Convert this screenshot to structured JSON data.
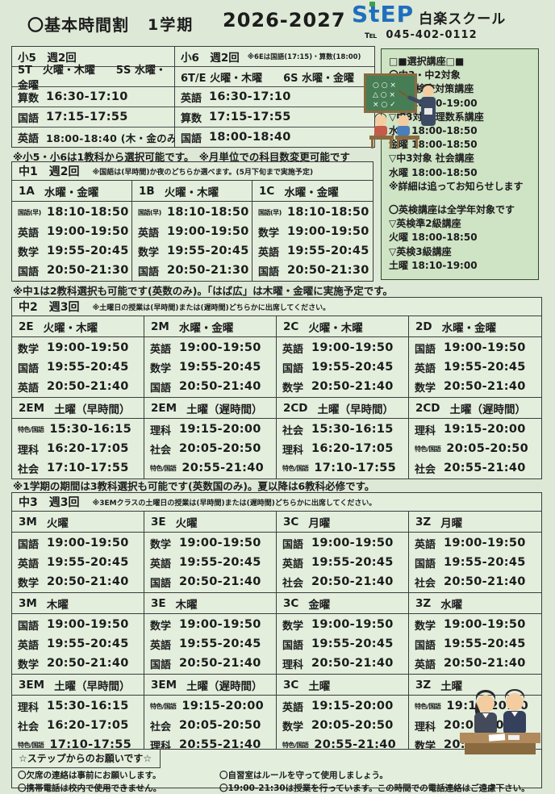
{
  "header": {
    "title": "〇基本時間割",
    "term": "1学期",
    "year": "2026-2027",
    "logo_step": "StEP",
    "school_name": "白楽スクール",
    "tel_label": "℡",
    "tel_number": "045-402-0112"
  },
  "colors": {
    "page_bg": "#dde8d6",
    "table_bg": "#e3eedd",
    "elective_bg": "#cfe3c5",
    "border": "#3c3c3c",
    "logo_blue": "#1f6fbe",
    "logo_green": "#3d9e4b"
  },
  "sho5": {
    "title": "小5　週2回",
    "class_line": "5T　火曜・木曜　　5S 水曜・金曜",
    "rows": [
      {
        "subject": "算数",
        "time": "16:30-17:10"
      },
      {
        "subject": "国語",
        "time": "17:15-17:55"
      },
      {
        "subject": "英語",
        "time": "18:00-18:40 (木・金のみ)"
      }
    ]
  },
  "sho6": {
    "title": "小6　週2回",
    "title_note": "※6Eは国語(17:15)・算数(18:00)",
    "class_line": "6T/E 火曜・木曜　　6S 水曜・金曜",
    "rows": [
      {
        "subject": "英語",
        "time": "16:30-17:10"
      },
      {
        "subject": "算数",
        "time": "17:15-17:55"
      },
      {
        "subject": "国語",
        "time": "18:00-18:40"
      }
    ]
  },
  "sho_note": "※小5・小6は1教科から選択可能です。　※月単位での科目数変更可能です",
  "electives": {
    "lines": [
      "□■選択講座□■",
      "〇中3・中2対象",
      "▽特色検査対策講座",
      "土曜  18:10-19:00",
      "▽中3対象  理数系講座",
      "水曜  18:00-18:50",
      "金曜  18:00-18:50",
      "▽中3対象  社会講座",
      "水曜  18:00-18:50",
      "※詳細は追ってお知らせします",
      "",
      "〇英検講座は全学年対象です",
      "▽英検準2級講座",
      "火曜  18:00-18:50",
      "▽英検3級講座",
      "土曜  18:10-19:00"
    ]
  },
  "chu1": {
    "title": "中1　週2回",
    "title_note": "※国語は(早時間)か夜のどちらか選べます。(5月下旬まで実施予定)",
    "footnote": "※中1は2教科選択も可能です(英数のみ)。「はば広」は木曜・金曜に実施予定です。",
    "blocks": [
      {
        "columns": [
          {
            "name": "1A",
            "days": "水曜・金曜",
            "rows": [
              {
                "subject": "国語(早)",
                "time": "18:10-18:50"
              },
              {
                "subject": "英語",
                "time": "19:00-19:50"
              },
              {
                "subject": "数学",
                "time": "19:55-20:45"
              },
              {
                "subject": "国語",
                "time": "20:50-21:30"
              }
            ]
          },
          {
            "name": "1B",
            "days": "火曜・木曜",
            "rows": [
              {
                "subject": "国語(早)",
                "time": "18:10-18:50"
              },
              {
                "subject": "英語",
                "time": "19:00-19:50"
              },
              {
                "subject": "数学",
                "time": "19:55-20:45"
              },
              {
                "subject": "国語",
                "time": "20:50-21:30"
              }
            ]
          },
          {
            "name": "1C",
            "days": "水曜・金曜",
            "rows": [
              {
                "subject": "国語(早)",
                "time": "18:10-18:50"
              },
              {
                "subject": "数学",
                "time": "19:00-19:50"
              },
              {
                "subject": "英語",
                "time": "19:55-20:45"
              },
              {
                "subject": "国語",
                "time": "20:50-21:30"
              }
            ]
          }
        ]
      }
    ]
  },
  "chu2": {
    "title": "中2　週3回",
    "title_note": "※土曜日の授業は(早時間)または(遅時間)どちらかに出席してください。",
    "footnote": "※1学期の期間は3教科選択も可能です(英数国のみ)。夏以降は6教科必修です。",
    "blocks": [
      {
        "columns": [
          {
            "name": "2E",
            "days": "火曜・木曜",
            "rows": [
              {
                "subject": "数学",
                "time": "19:00-19:50"
              },
              {
                "subject": "国語",
                "time": "19:55-20:45"
              },
              {
                "subject": "英語",
                "time": "20:50-21:40"
              }
            ]
          },
          {
            "name": "2M",
            "days": "水曜・金曜",
            "rows": [
              {
                "subject": "英語",
                "time": "19:00-19:50"
              },
              {
                "subject": "数学",
                "time": "19:55-20:45"
              },
              {
                "subject": "国語",
                "time": "20:50-21:40"
              }
            ]
          },
          {
            "name": "2C",
            "days": "火曜・木曜",
            "rows": [
              {
                "subject": "英語",
                "time": "19:00-19:50"
              },
              {
                "subject": "国語",
                "time": "19:55-20:45"
              },
              {
                "subject": "数学",
                "time": "20:50-21:40"
              }
            ]
          },
          {
            "name": "2D",
            "days": "水曜・金曜",
            "rows": [
              {
                "subject": "国語",
                "time": "19:00-19:50"
              },
              {
                "subject": "英語",
                "time": "19:55-20:45"
              },
              {
                "subject": "数学",
                "time": "20:50-21:40"
              }
            ]
          }
        ]
      },
      {
        "columns": [
          {
            "name": "2EM",
            "days": "土曜（早時間）",
            "rows": [
              {
                "subject": "特色/国語",
                "time": "15:30-16:15"
              },
              {
                "subject": "理科",
                "time": "16:20-17:05"
              },
              {
                "subject": "社会",
                "time": "17:10-17:55"
              }
            ]
          },
          {
            "name": "2EM",
            "days": "土曜（遅時間）",
            "rows": [
              {
                "subject": "理科",
                "time": "19:15-20:00"
              },
              {
                "subject": "社会",
                "time": "20:05-20:50"
              },
              {
                "subject": "特色/国語",
                "time": "20:55-21:40"
              }
            ]
          },
          {
            "name": "2CD",
            "days": "土曜（早時間）",
            "rows": [
              {
                "subject": "社会",
                "time": "15:30-16:15"
              },
              {
                "subject": "理科",
                "time": "16:20-17:05"
              },
              {
                "subject": "特色/国語",
                "time": "17:10-17:55"
              }
            ]
          },
          {
            "name": "2CD",
            "days": "土曜（遅時間）",
            "rows": [
              {
                "subject": "理科",
                "time": "19:15-20:00"
              },
              {
                "subject": "特色/国語",
                "time": "20:05-20:50"
              },
              {
                "subject": "社会",
                "time": "20:55-21:40"
              }
            ]
          }
        ]
      }
    ]
  },
  "chu3": {
    "title": "中3　週3回",
    "title_note": "※3EMクラスの土曜日の授業は(早時間)または(遅時間)どちらかに出席してください。",
    "blocks": [
      {
        "columns": [
          {
            "name": "3M",
            "days": "火曜",
            "rows": [
              {
                "subject": "国語",
                "time": "19:00-19:50"
              },
              {
                "subject": "英語",
                "time": "19:55-20:45"
              },
              {
                "subject": "数学",
                "time": "20:50-21:40"
              }
            ]
          },
          {
            "name": "3E",
            "days": "火曜",
            "rows": [
              {
                "subject": "数学",
                "time": "19:00-19:50"
              },
              {
                "subject": "英語",
                "time": "19:55-20:45"
              },
              {
                "subject": "国語",
                "time": "20:50-21:40"
              }
            ]
          },
          {
            "name": "3C",
            "days": "月曜",
            "rows": [
              {
                "subject": "国語",
                "time": "19:00-19:50"
              },
              {
                "subject": "英語",
                "time": "19:55-20:45"
              },
              {
                "subject": "社会",
                "time": "20:50-21:40"
              }
            ]
          },
          {
            "name": "3Z",
            "days": "月曜",
            "rows": [
              {
                "subject": "英語",
                "time": "19:00-19:50"
              },
              {
                "subject": "国語",
                "time": "19:55-20:45"
              },
              {
                "subject": "社会",
                "time": "20:50-21:40"
              }
            ]
          }
        ]
      },
      {
        "columns": [
          {
            "name": "3M",
            "days": "木曜",
            "rows": [
              {
                "subject": "国語",
                "time": "19:00-19:50"
              },
              {
                "subject": "英語",
                "time": "19:55-20:45"
              },
              {
                "subject": "数学",
                "time": "20:50-21:40"
              }
            ]
          },
          {
            "name": "3E",
            "days": "木曜",
            "rows": [
              {
                "subject": "数学",
                "time": "19:00-19:50"
              },
              {
                "subject": "英語",
                "time": "19:55-20:45"
              },
              {
                "subject": "国語",
                "time": "20:50-21:40"
              }
            ]
          },
          {
            "name": "3C",
            "days": "金曜",
            "rows": [
              {
                "subject": "数学",
                "time": "19:00-19:50"
              },
              {
                "subject": "国語",
                "time": "19:55-20:45"
              },
              {
                "subject": "理科",
                "time": "20:50-21:40"
              }
            ]
          },
          {
            "name": "3Z",
            "days": "水曜",
            "rows": [
              {
                "subject": "数学",
                "time": "19:00-19:50"
              },
              {
                "subject": "国語",
                "time": "19:55-20:45"
              },
              {
                "subject": "英語",
                "time": "20:50-21:40"
              }
            ]
          }
        ]
      },
      {
        "columns": [
          {
            "name": "3EM",
            "days": "土曜（早時間）",
            "rows": [
              {
                "subject": "理科",
                "time": "15:30-16:15"
              },
              {
                "subject": "社会",
                "time": "16:20-17:05"
              },
              {
                "subject": "特色/国語",
                "time": "17:10-17:55"
              }
            ]
          },
          {
            "name": "3EM",
            "days": "土曜（遅時間）",
            "rows": [
              {
                "subject": "特色/国語",
                "time": "19:15-20:00"
              },
              {
                "subject": "社会",
                "time": "20:05-20:50"
              },
              {
                "subject": "理科",
                "time": "20:55-21:40"
              }
            ]
          },
          {
            "name": "3C",
            "days": "土曜",
            "rows": [
              {
                "subject": "英語",
                "time": "19:15-20:00"
              },
              {
                "subject": "数学",
                "time": "20:05-20:50"
              },
              {
                "subject": "特色/国語",
                "time": "20:55-21:40"
              }
            ]
          },
          {
            "name": "3Z",
            "days": "土曜",
            "rows": [
              {
                "subject": "特色/国語",
                "time": "19:15-20:00"
              },
              {
                "subject": "理科",
                "time": "20:05-20:50"
              },
              {
                "subject": "数学",
                "time": "20:55-21:40"
              }
            ]
          }
        ]
      }
    ]
  },
  "requests": {
    "title": "☆ステップからのお願いです☆",
    "items_row1": [
      "〇欠席の連絡は事前にお願いします。",
      "〇自習室はルールを守って使用しましょう。"
    ],
    "items_row2": [
      "〇携帯電話は校内で使用できません。",
      "〇19:00-21:30は授業を行っています。この時間での電話連絡はご遠慮下さい。"
    ]
  }
}
